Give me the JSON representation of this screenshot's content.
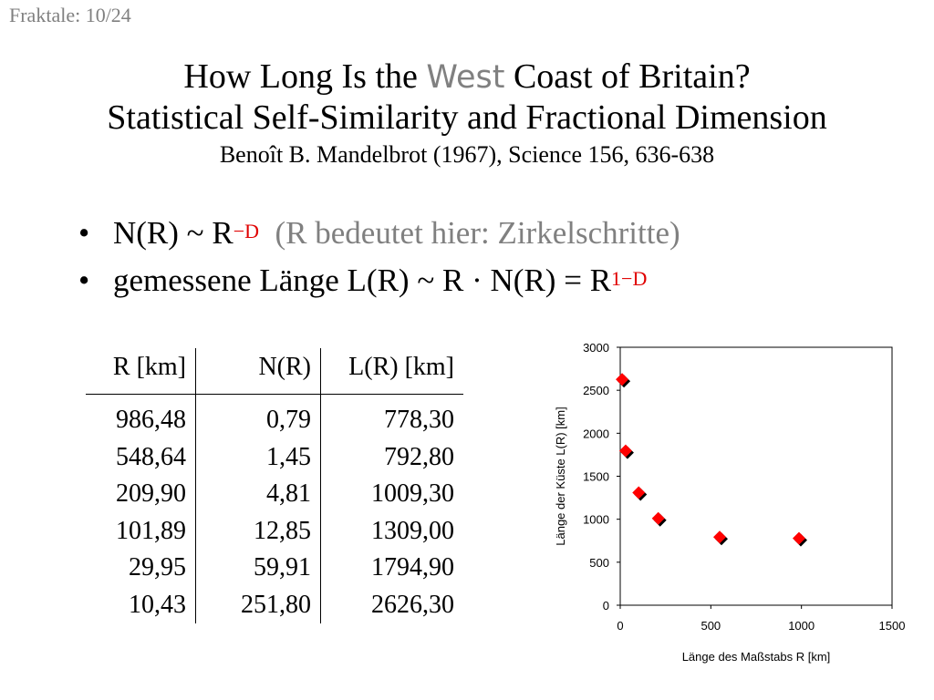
{
  "header": {
    "slide_label": "Fraktale: 10/24"
  },
  "title": {
    "line1_prefix": "How Long Is the",
    "line1_highlight": "West",
    "line1_suffix": "Coast of Britain?",
    "line2": "Statistical Self-Similarity and Fractional Dimension",
    "line3": "Benoît B. Mandelbrot (1967), Science 156, 636-638"
  },
  "bullets": [
    {
      "text": "N(R) ~ R",
      "sup": "−D",
      "note": "(R bedeutet hier: Zirkelschritte)"
    },
    {
      "text": "gemessene Länge L(R) ~ R · N(R) = R",
      "sup": "1−D"
    }
  ],
  "table": {
    "headers": [
      "R [km]",
      "N(R)",
      "L(R) [km]"
    ],
    "rows": [
      [
        "986,48",
        "0,79",
        "778,30"
      ],
      [
        "548,64",
        "1,45",
        "792,80"
      ],
      [
        "209,90",
        "4,81",
        "1009,30"
      ],
      [
        "101,89",
        "12,85",
        "1309,00"
      ],
      [
        "29,95",
        "59,91",
        "1794,90"
      ],
      [
        "10,43",
        "251,80",
        "2626,30"
      ]
    ]
  },
  "chart_data": {
    "type": "scatter",
    "xlabel": "Länge des Maßstabs R [km]",
    "ylabel": "Länge der Küste L(R) [km]",
    "xlim": [
      0,
      1500
    ],
    "ylim": [
      0,
      3000
    ],
    "xticks": [
      "0",
      "500",
      "1000",
      "1500"
    ],
    "yticks": [
      "0",
      "500",
      "1000",
      "1500",
      "2000",
      "2500",
      "3000"
    ],
    "marker_color": "#ff0000",
    "shadow_color": "#000000",
    "series": [
      {
        "x": [
          986.48,
          548.64,
          209.9,
          101.89,
          29.95,
          10.43
        ],
        "y": [
          778.3,
          792.8,
          1009.3,
          1309.0,
          1794.9,
          2626.3
        ]
      }
    ]
  }
}
